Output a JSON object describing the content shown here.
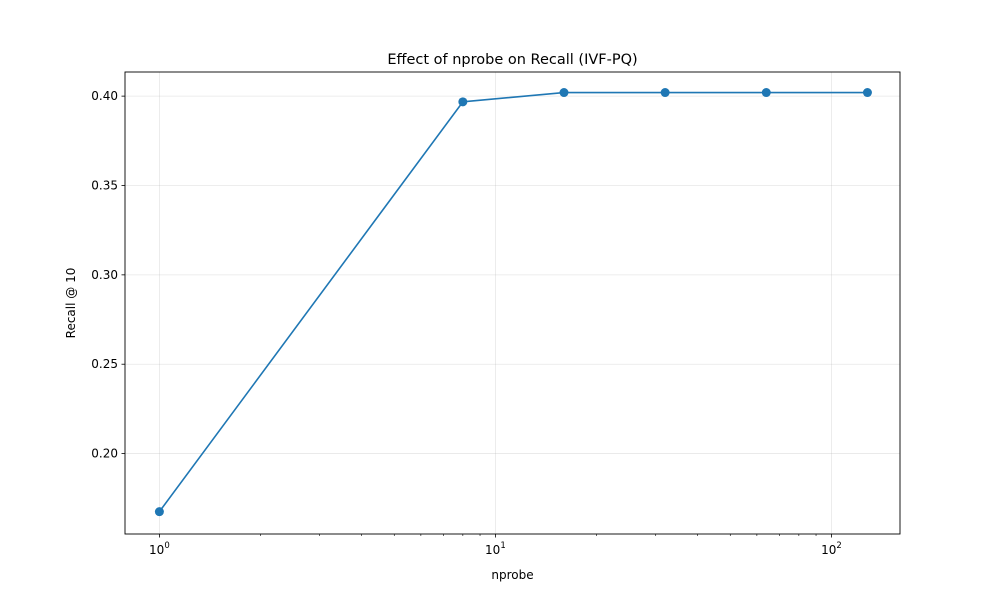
{
  "chart_data": {
    "type": "line",
    "title": "Effect of nprobe on Recall (IVF-PQ)",
    "xlabel": "nprobe",
    "ylabel": "Recall @ 10",
    "x_scale": "log",
    "xlim": [
      0.79,
      160
    ],
    "ylim": [
      0.155,
      0.4135
    ],
    "grid": true,
    "x_ticks": [
      {
        "value": 1,
        "label_base": "10",
        "label_exp": "0"
      },
      {
        "value": 10,
        "label_base": "10",
        "label_exp": "1"
      },
      {
        "value": 100,
        "label_base": "10",
        "label_exp": "2"
      }
    ],
    "y_ticks": [
      0.2,
      0.25,
      0.3,
      0.35,
      0.4
    ],
    "y_tick_labels": [
      "0.20",
      "0.25",
      "0.30",
      "0.35",
      "0.40"
    ],
    "series": [
      {
        "x": [
          1,
          8,
          16,
          32,
          64,
          128
        ],
        "y": [
          0.1675,
          0.3968,
          0.402,
          0.402,
          0.402,
          0.402
        ],
        "color": "#1f77b4",
        "marker": "circle"
      }
    ]
  }
}
